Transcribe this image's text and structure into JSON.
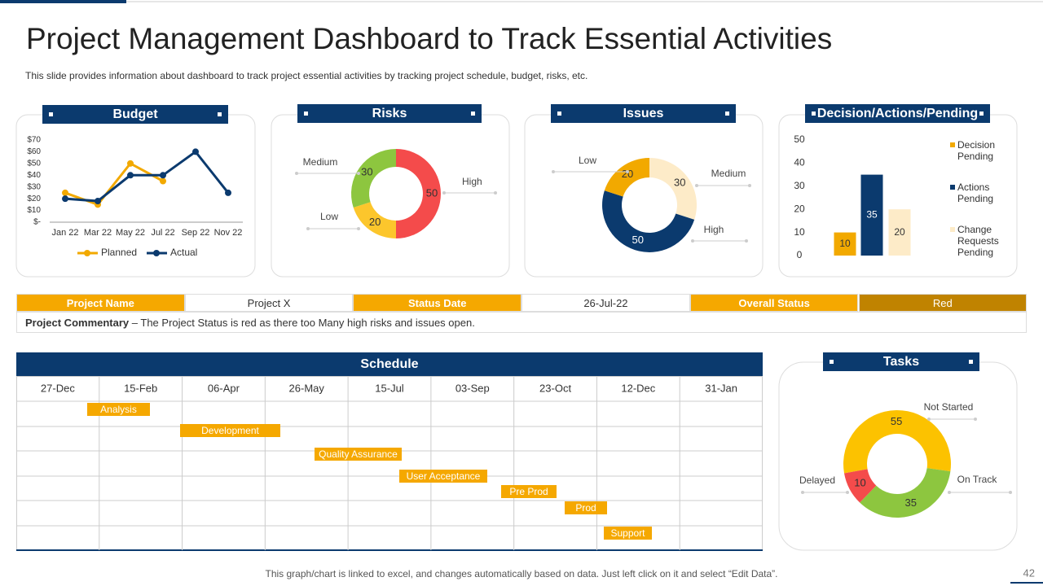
{
  "title": "Project Management Dashboard to Track Essential Activities",
  "subtitle": "This slide provides information about dashboard to track project essential activities by tracking project schedule, budget, risks, etc.",
  "chart_data": [
    {
      "type": "line",
      "title": "Budget",
      "categories": [
        "Jan 22",
        "Mar 22",
        "May 22",
        "Jul 22",
        "Sep 22",
        "Nov 22"
      ],
      "series": [
        {
          "name": "Planned",
          "color": "#f2a900",
          "values": [
            25,
            15,
            50,
            35,
            null,
            null
          ]
        },
        {
          "name": "Actual",
          "color": "#0b3a6e",
          "values": [
            20,
            18,
            40,
            40,
            60,
            25
          ]
        }
      ],
      "ylim": [
        0,
        70
      ],
      "yticks": [
        {
          "value": 0,
          "label": "$-"
        },
        {
          "value": 10,
          "label": "$10"
        },
        {
          "value": 20,
          "label": "$20"
        },
        {
          "value": 30,
          "label": "$30"
        },
        {
          "value": 40,
          "label": "$40"
        },
        {
          "value": 50,
          "label": "$50"
        },
        {
          "value": 60,
          "label": "$60"
        },
        {
          "value": 70,
          "label": "$70"
        }
      ],
      "legend": "bottom"
    },
    {
      "type": "donut",
      "title": "Risks",
      "categories": [
        "High",
        "Low",
        "Medium"
      ],
      "values": [
        50,
        20,
        30
      ],
      "colors": [
        "#f44b4b",
        "#fcc62c",
        "#8dc63f"
      ]
    },
    {
      "type": "donut",
      "title": "Issues",
      "categories": [
        "Medium",
        "High",
        "Low"
      ],
      "values": [
        30,
        50,
        20
      ],
      "colors": [
        "#fdebc8",
        "#0b3a6e",
        "#f2a900"
      ]
    },
    {
      "type": "bar",
      "title": "Decision/Actions/Pending",
      "categories": [
        "Decision Pending",
        "Actions Pending",
        "Change Requests Pending"
      ],
      "values": [
        10,
        35,
        20
      ],
      "colors": [
        "#f2a900",
        "#0b3a6e",
        "#fdebc8"
      ],
      "ylim": [
        0,
        50
      ],
      "yticks": [
        0,
        10,
        20,
        30,
        40,
        50
      ],
      "legend": "right"
    },
    {
      "type": "donut",
      "title": "Tasks",
      "categories": [
        "Not Started",
        "On Track",
        "Delayed"
      ],
      "values": [
        55,
        35,
        10
      ],
      "colors": [
        "#fcc200",
        "#8dc63f",
        "#f44b4b"
      ]
    }
  ],
  "status": {
    "cells": [
      "Project Name",
      "Project X",
      "Status Date",
      "26-Jul-22",
      "Overall Status",
      "Red"
    ]
  },
  "commentary": {
    "label": "Project Commentary",
    "text": "– The Project Status is red as there too Many high risks and issues open."
  },
  "schedule": {
    "title": "Schedule",
    "dates": [
      "27-Dec",
      "15-Feb",
      "06-Apr",
      "26-May",
      "15-Jul",
      "03-Sep",
      "23-Oct",
      "12-Dec",
      "31-Jan"
    ],
    "tasks": [
      "Analysis",
      "Development",
      "Quality Assurance",
      "User Acceptance",
      "Pre Prod",
      "Prod",
      "Support"
    ]
  },
  "footer": "This graph/chart is linked to excel,  and changes automatically based on data. Just left click on it and select “Edit Data”.",
  "page_number": 42
}
